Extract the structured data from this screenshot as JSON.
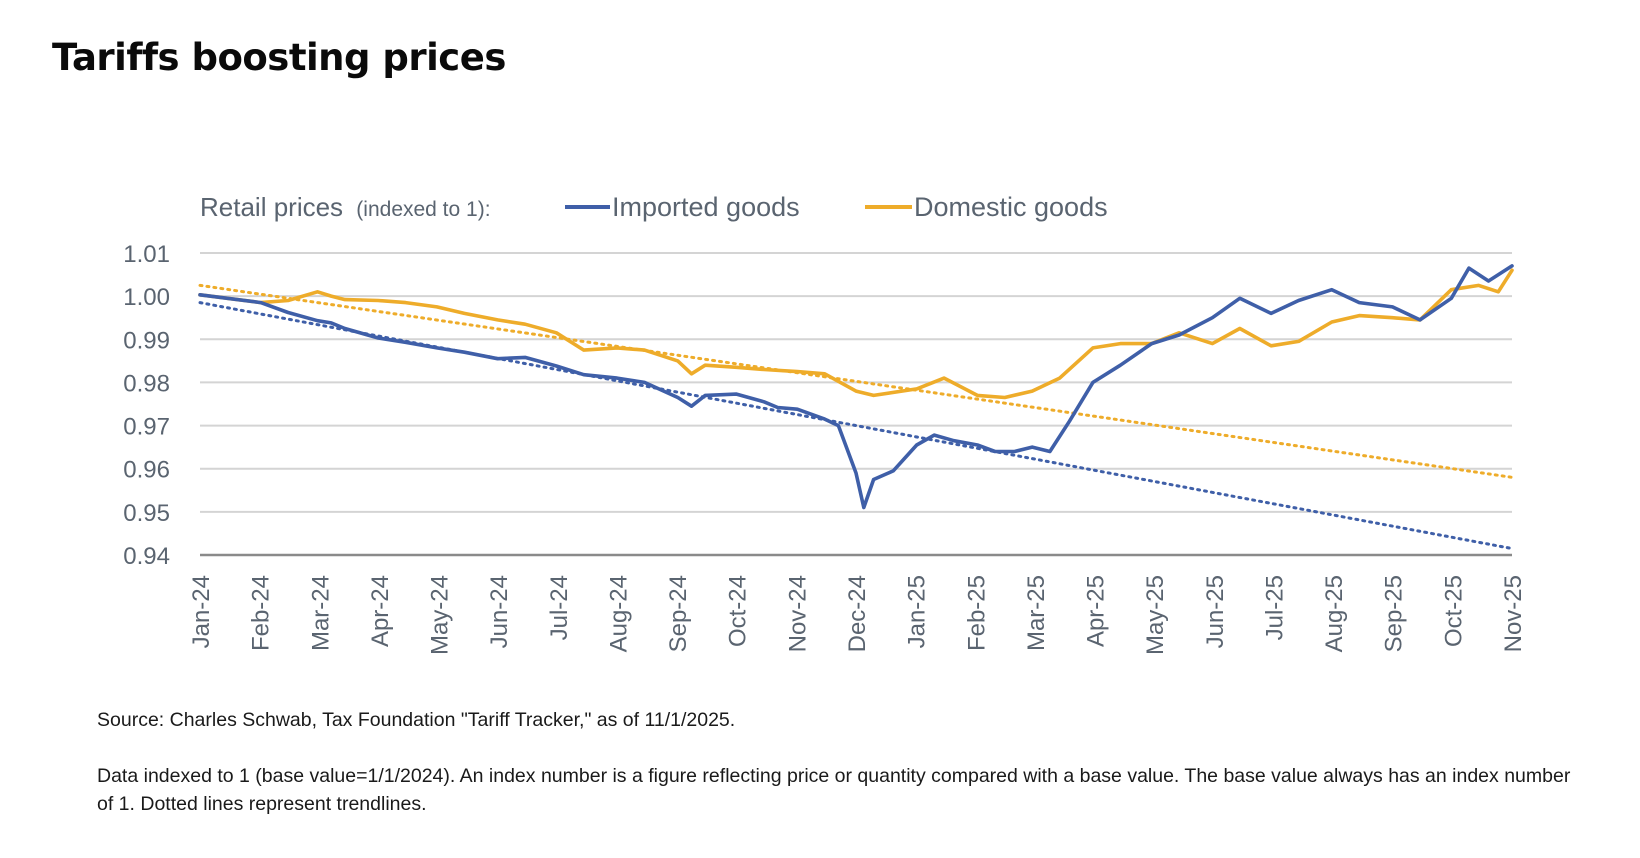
{
  "page": {
    "title": "Tariffs boosting prices",
    "source": "Source: Charles Schwab, Tax Foundation \"Tariff Tracker,\" as of 11/1/2025.",
    "note": "Data indexed to 1 (base value=1/1/2024). An index number is a figure reflecting price or quantity compared with a base value. The base value always has an index number of 1. Dotted lines represent trendlines."
  },
  "chart_data": {
    "type": "line",
    "legend_prefix": "Retail prices",
    "legend_prefix_note": "(indexed to 1):",
    "legend_placement": "top-left",
    "grid": true,
    "ylim": [
      0.94,
      1.01
    ],
    "y_ticks": [
      "1.01",
      "1.00",
      "0.99",
      "0.98",
      "0.97",
      "0.96",
      "0.95",
      "0.94"
    ],
    "x_ticks": [
      "Jan-24",
      "Feb-24",
      "Mar-24",
      "Apr-24",
      "May-24",
      "Jun-24",
      "Jul-24",
      "Aug-24",
      "Sep-24",
      "Oct-24",
      "Nov-24",
      "Dec-24",
      "Jan-25",
      "Feb-25",
      "Mar-25",
      "Apr-25",
      "May-25",
      "Jun-25",
      "Jul-25",
      "Aug-25",
      "Sep-25",
      "Oct-25",
      "Nov-25"
    ],
    "colors": {
      "imported": "#3f5fa8",
      "domestic": "#eeac2a",
      "grid": "#d4d4d4",
      "axis": "#8a8a8a"
    },
    "series": [
      {
        "name": "Imported goods",
        "color": "#3f5fa8",
        "x": [
          "2024-01-01",
          "2024-01-15",
          "2024-02-01",
          "2024-02-15",
          "2024-03-01",
          "2024-03-08",
          "2024-03-15",
          "2024-04-01",
          "2024-04-15",
          "2024-05-01",
          "2024-05-15",
          "2024-06-01",
          "2024-06-15",
          "2024-07-01",
          "2024-07-15",
          "2024-08-01",
          "2024-08-15",
          "2024-09-01",
          "2024-09-08",
          "2024-09-15",
          "2024-10-01",
          "2024-10-15",
          "2024-10-22",
          "2024-11-01",
          "2024-11-15",
          "2024-11-22",
          "2024-12-01",
          "2024-12-05",
          "2024-12-10",
          "2024-12-20",
          "2025-01-01",
          "2025-01-10",
          "2025-01-20",
          "2025-02-01",
          "2025-02-10",
          "2025-02-20",
          "2025-03-01",
          "2025-03-10",
          "2025-03-20",
          "2025-04-01",
          "2025-04-15",
          "2025-05-01",
          "2025-05-15",
          "2025-06-01",
          "2025-06-15",
          "2025-07-01",
          "2025-07-15",
          "2025-08-01",
          "2025-08-15",
          "2025-09-01",
          "2025-09-15",
          "2025-10-01",
          "2025-10-10",
          "2025-10-20",
          "2025-11-01"
        ],
        "values": [
          1.0003,
          0.9995,
          0.9985,
          0.9962,
          0.9943,
          0.9938,
          0.9925,
          0.9903,
          0.9893,
          0.988,
          0.987,
          0.9855,
          0.9858,
          0.9838,
          0.9818,
          0.981,
          0.98,
          0.9765,
          0.9745,
          0.977,
          0.9773,
          0.9755,
          0.9742,
          0.9738,
          0.9715,
          0.97,
          0.959,
          0.951,
          0.9575,
          0.9595,
          0.9655,
          0.9678,
          0.9665,
          0.9655,
          0.964,
          0.964,
          0.965,
          0.964,
          0.971,
          0.98,
          0.984,
          0.989,
          0.991,
          0.995,
          0.9995,
          0.996,
          0.999,
          1.0015,
          0.9985,
          0.9975,
          0.9945,
          0.9995,
          1.0065,
          1.0035,
          1.007
        ]
      },
      {
        "name": "Domestic goods",
        "color": "#eeac2a",
        "x": [
          "2024-01-01",
          "2024-01-15",
          "2024-02-01",
          "2024-02-15",
          "2024-03-01",
          "2024-03-08",
          "2024-03-15",
          "2024-04-01",
          "2024-04-15",
          "2024-05-01",
          "2024-05-15",
          "2024-06-01",
          "2024-06-15",
          "2024-07-01",
          "2024-07-15",
          "2024-08-01",
          "2024-08-15",
          "2024-09-01",
          "2024-09-08",
          "2024-09-15",
          "2024-10-01",
          "2024-10-15",
          "2024-11-01",
          "2024-11-15",
          "2024-12-01",
          "2024-12-10",
          "2025-01-01",
          "2025-01-15",
          "2025-02-01",
          "2025-02-15",
          "2025-03-01",
          "2025-03-15",
          "2025-04-01",
          "2025-04-15",
          "2025-05-01",
          "2025-05-15",
          "2025-06-01",
          "2025-06-15",
          "2025-07-01",
          "2025-07-15",
          "2025-08-01",
          "2025-08-15",
          "2025-09-01",
          "2025-09-15",
          "2025-10-01",
          "2025-10-15",
          "2025-10-25",
          "2025-11-01"
        ],
        "values": [
          1.0003,
          0.9995,
          0.9985,
          0.999,
          1.001,
          1.0,
          0.9992,
          0.999,
          0.9985,
          0.9975,
          0.996,
          0.9945,
          0.9935,
          0.9915,
          0.9875,
          0.988,
          0.9875,
          0.985,
          0.982,
          0.984,
          0.9835,
          0.983,
          0.9825,
          0.982,
          0.978,
          0.977,
          0.9785,
          0.981,
          0.977,
          0.9765,
          0.978,
          0.981,
          0.988,
          0.989,
          0.989,
          0.9915,
          0.989,
          0.9925,
          0.9885,
          0.9895,
          0.994,
          0.9955,
          0.995,
          0.9945,
          1.0015,
          1.0025,
          1.001,
          1.006
        ]
      }
    ],
    "trendlines": [
      {
        "series": "Imported goods",
        "start": [
          "2024-01-01",
          0.9985
        ],
        "end": [
          "2025-11-01",
          0.9415
        ]
      },
      {
        "series": "Domestic goods",
        "start": [
          "2024-01-01",
          1.0025
        ],
        "end": [
          "2025-11-01",
          0.958
        ]
      }
    ]
  }
}
